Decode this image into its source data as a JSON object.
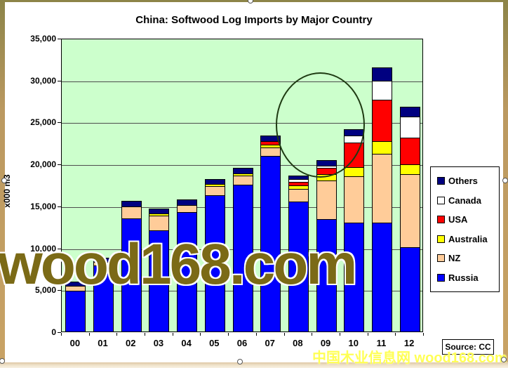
{
  "title": "China: Softwood Log Imports by Major Country",
  "y_axis": {
    "title": "x000 m3",
    "tick_labels": [
      "0",
      "5,000",
      "10,000",
      "15,000",
      "20,000",
      "25,000",
      "30,000",
      "35,000"
    ]
  },
  "x_axis": {
    "labels": [
      "00",
      "01",
      "02",
      "03",
      "04",
      "05",
      "06",
      "07",
      "08",
      "09",
      "10",
      "11",
      "12"
    ]
  },
  "legend": [
    {
      "label": "Others",
      "color": "#000080"
    },
    {
      "label": "Canada",
      "color": "#ffffff"
    },
    {
      "label": "USA",
      "color": "#ff0000"
    },
    {
      "label": "Australia",
      "color": "#ffff00"
    },
    {
      "label": "NZ",
      "color": "#ffcc99"
    },
    {
      "label": "Russia",
      "color": "#0000fe"
    }
  ],
  "source_label": "Source: CC",
  "watermarks": {
    "main": "wood168.com",
    "bottom_right": "中国木业信息网 wood168.com"
  },
  "colors": {
    "plot_background": "#ccffcc",
    "gridline": "#4d4d4d",
    "bar_border": "#000000",
    "frame": "#c9a365",
    "watermark_main": "#7b6a16",
    "watermark_cn": "#ffff55"
  },
  "chart_data": {
    "type": "bar",
    "stacked": true,
    "title": "China: Softwood Log Imports by Major Country",
    "xlabel": "",
    "ylabel": "x000 m3",
    "ylim": [
      0,
      35000
    ],
    "ytick_step": 5000,
    "grid": true,
    "legend_position": "right",
    "categories": [
      "00",
      "01",
      "02",
      "03",
      "04",
      "05",
      "06",
      "07",
      "08",
      "09",
      "10",
      "11",
      "12"
    ],
    "series": [
      {
        "name": "Russia",
        "color": "#0000fe",
        "values": [
          4850,
          7900,
          13500,
          12100,
          14200,
          16250,
          17500,
          20900,
          15500,
          13400,
          13000,
          13000,
          10050
        ]
      },
      {
        "name": "NZ",
        "color": "#ffcc99",
        "values": [
          600,
          400,
          1400,
          1700,
          850,
          1100,
          1100,
          1000,
          1500,
          4600,
          5500,
          8200,
          8700
        ]
      },
      {
        "name": "Australia",
        "color": "#ffff00",
        "values": [
          0,
          0,
          0,
          250,
          0,
          200,
          250,
          400,
          400,
          750,
          1100,
          1500,
          1200
        ]
      },
      {
        "name": "USA",
        "color": "#ff0000",
        "values": [
          0,
          0,
          0,
          0,
          0,
          0,
          0,
          400,
          400,
          750,
          2900,
          4900,
          3200
        ]
      },
      {
        "name": "Canada",
        "color": "#ffffff",
        "values": [
          0,
          0,
          0,
          0,
          0,
          0,
          0,
          0,
          350,
          250,
          900,
          2300,
          2500
        ]
      },
      {
        "name": "Others",
        "color": "#000080",
        "values": [
          500,
          500,
          700,
          600,
          700,
          600,
          700,
          700,
          450,
          700,
          750,
          1600,
          1150
        ]
      }
    ],
    "totals": [
      5950,
      8800,
      15600,
      14650,
      15750,
      18150,
      19550,
      23400,
      18600,
      20450,
      24150,
      31500,
      26800
    ],
    "annotations": [
      {
        "type": "ellipse",
        "note": "hand-drawn circle highlighting the 2008-2010 bars"
      }
    ]
  }
}
